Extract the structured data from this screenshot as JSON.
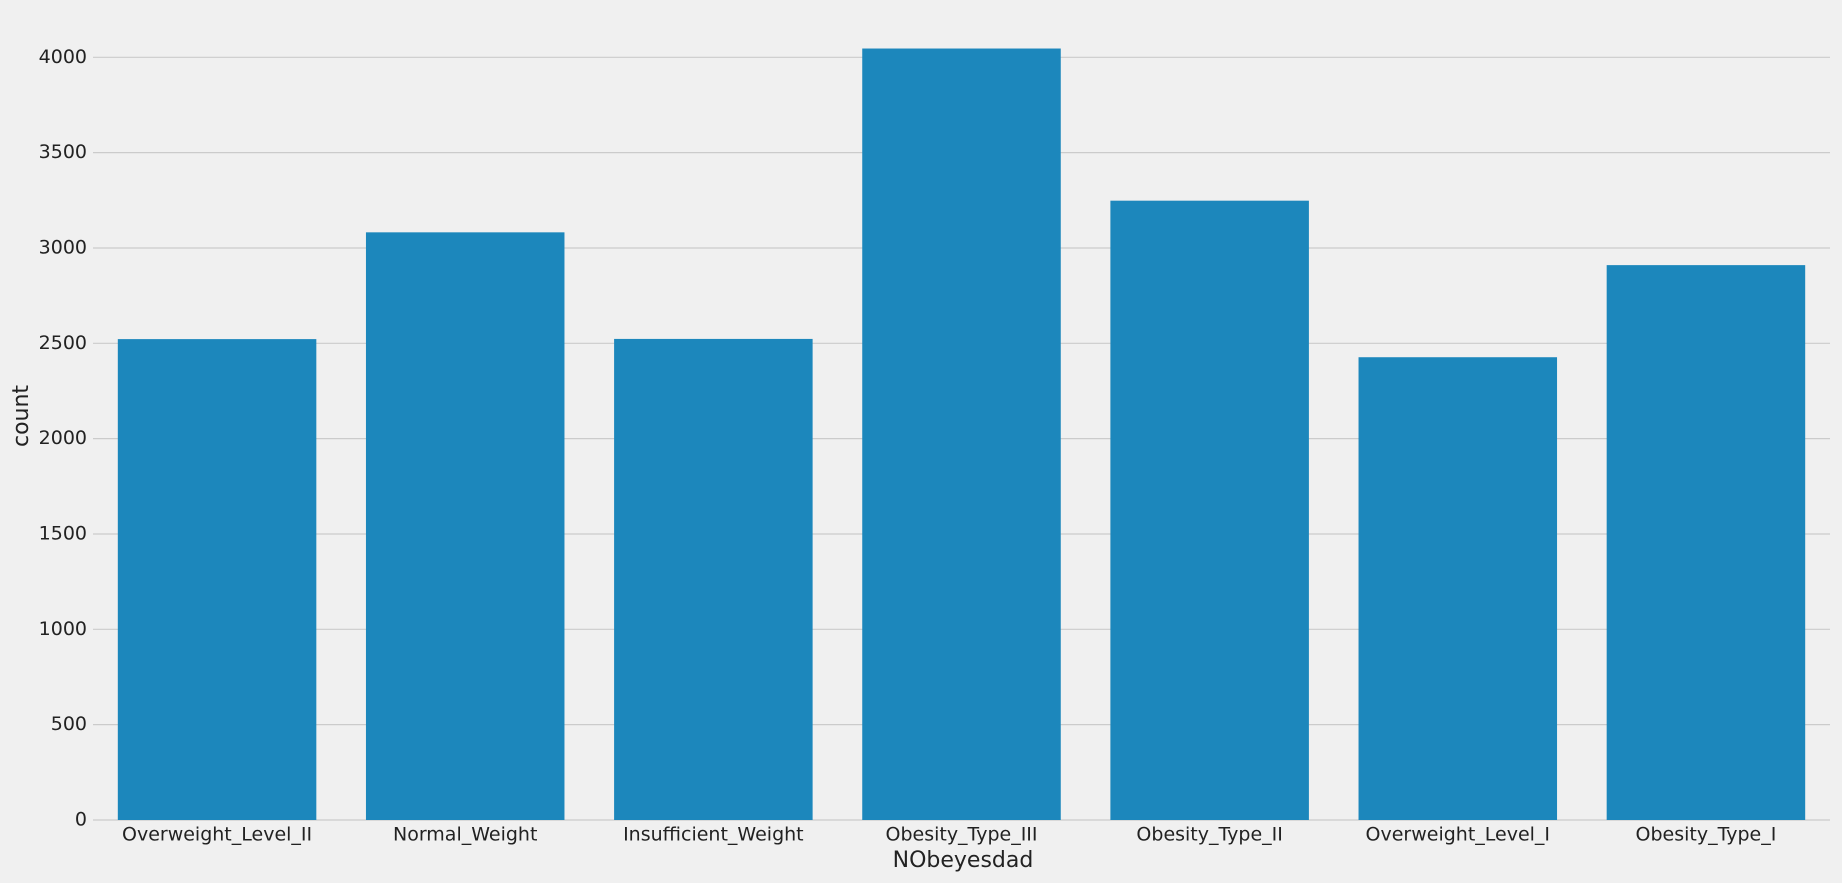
{
  "chart_data": {
    "type": "bar",
    "x_label": "NObeyesdad",
    "y_label": "count",
    "categories": [
      "Overweight_Level_II",
      "Normal_Weight",
      "Insufficient_Weight",
      "Obesity_Type_III",
      "Obesity_Type_II",
      "Overweight_Level_I",
      "Obesity_Type_I"
    ],
    "values": [
      2522,
      3082,
      2523,
      4046,
      3248,
      2427,
      2910
    ],
    "color": "#1c87bc",
    "ylim": [
      0,
      4248
    ],
    "yticks": [
      0,
      500,
      1000,
      1500,
      2000,
      2500,
      3000,
      3500,
      4000
    ],
    "grid": true
  }
}
